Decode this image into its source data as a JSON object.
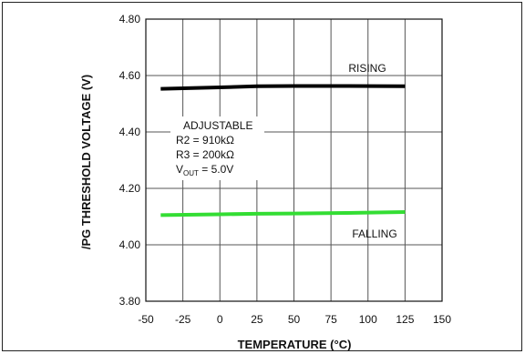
{
  "chart_data": {
    "type": "line",
    "xlabel": "TEMPERATURE (°C)",
    "ylabel": "/PG THRESHOLD VOLTAGE (V)",
    "xlim": [
      -50,
      150
    ],
    "ylim": [
      3.8,
      4.8
    ],
    "x_ticks": [
      "-50",
      "-25",
      "0",
      "25",
      "50",
      "75",
      "100",
      "125",
      "150"
    ],
    "y_ticks": [
      "3.80",
      "4.00",
      "4.20",
      "4.40",
      "4.60",
      "4.80"
    ],
    "grid": true,
    "series": [
      {
        "name": "RISING",
        "color": "#000000",
        "x": [
          -40,
          0,
          25,
          50,
          85,
          125
        ],
        "y": [
          4.553,
          4.558,
          4.562,
          4.563,
          4.563,
          4.562
        ]
      },
      {
        "name": "FALLING",
        "color": "#33dd33",
        "x": [
          -40,
          0,
          25,
          50,
          85,
          125
        ],
        "y": [
          4.105,
          4.108,
          4.11,
          4.111,
          4.113,
          4.116
        ]
      }
    ],
    "annotations": {
      "title": "ADJUSTABLE",
      "r2": "R2 = 910kΩ",
      "r3": "R3 = 200kΩ",
      "vout_v": "V",
      "vout_sub": "OUT",
      "vout_rest": " = 5.0V"
    }
  }
}
